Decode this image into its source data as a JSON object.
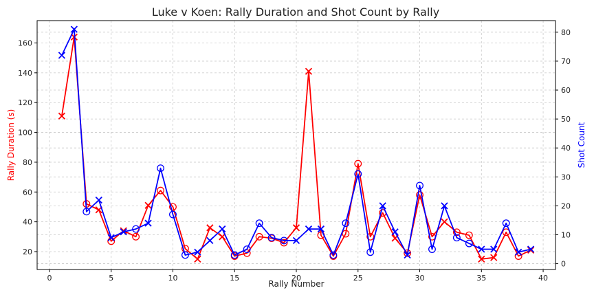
{
  "chart_data": {
    "type": "line",
    "title": "Luke v Koen: Rally Duration and Shot Count by Rally",
    "xlabel": "Rally Number",
    "ylabel_left": "Rally Duration (s)",
    "ylabel_right": "Shot Count",
    "xlim": [
      -1,
      41
    ],
    "ylim_left": [
      8,
      175
    ],
    "ylim_right": [
      -2,
      84
    ],
    "xticks": [
      0,
      5,
      10,
      15,
      20,
      25,
      30,
      35,
      40
    ],
    "yticks_left": [
      20,
      40,
      60,
      80,
      100,
      120,
      140,
      160
    ],
    "yticks_right": [
      0,
      10,
      20,
      30,
      40,
      50,
      60,
      70,
      80
    ],
    "grid": true,
    "colors": {
      "duration": "#ff0000",
      "shots": "#0000ff"
    },
    "x": [
      1,
      2,
      3,
      4,
      5,
      6,
      7,
      8,
      9,
      10,
      11,
      12,
      13,
      14,
      15,
      16,
      17,
      18,
      19,
      20,
      21,
      22,
      23,
      24,
      25,
      26,
      27,
      28,
      29,
      30,
      31,
      32,
      33,
      34,
      35,
      36,
      37,
      38,
      39
    ],
    "duration": [
      111,
      164,
      52,
      48,
      27,
      34,
      30,
      51,
      61,
      50,
      22,
      15,
      36,
      30,
      17,
      19,
      30,
      29,
      26,
      36,
      141,
      31,
      17,
      32,
      79,
      30,
      46,
      29,
      19,
      58,
      30,
      40,
      33,
      31,
      15,
      16,
      33,
      17,
      21
    ],
    "duration_markers": [
      "x",
      "x",
      "o",
      "x",
      "o",
      "x",
      "o",
      "x",
      "o",
      "o",
      "o",
      "x",
      "x",
      "x",
      "o",
      "o",
      "o",
      "o",
      "o",
      "x",
      "x",
      "o",
      "o",
      "o",
      "o",
      "o",
      "o",
      "x",
      "o",
      "o",
      "o",
      "x",
      "o",
      "o",
      "x",
      "x",
      "o",
      "o",
      "x"
    ],
    "shots": [
      72,
      81,
      18,
      22,
      9,
      11,
      12,
      14,
      33,
      17,
      3,
      4,
      8,
      12,
      3,
      5,
      14,
      9,
      8,
      8,
      12,
      12,
      3,
      14,
      31,
      4,
      20,
      11,
      3,
      27,
      5,
      20,
      9,
      7,
      5,
      5,
      14,
      4,
      5
    ],
    "shots_markers": [
      "x",
      "x",
      "o",
      "x",
      "x",
      "x",
      "o",
      "x",
      "o",
      "o",
      "o",
      "x",
      "x",
      "x",
      "o",
      "o",
      "o",
      "o",
      "o",
      "x",
      "x",
      "x",
      "o",
      "o",
      "o",
      "o",
      "x",
      "x",
      "x",
      "o",
      "o",
      "x",
      "o",
      "o",
      "x",
      "x",
      "o",
      "x",
      "x"
    ]
  }
}
